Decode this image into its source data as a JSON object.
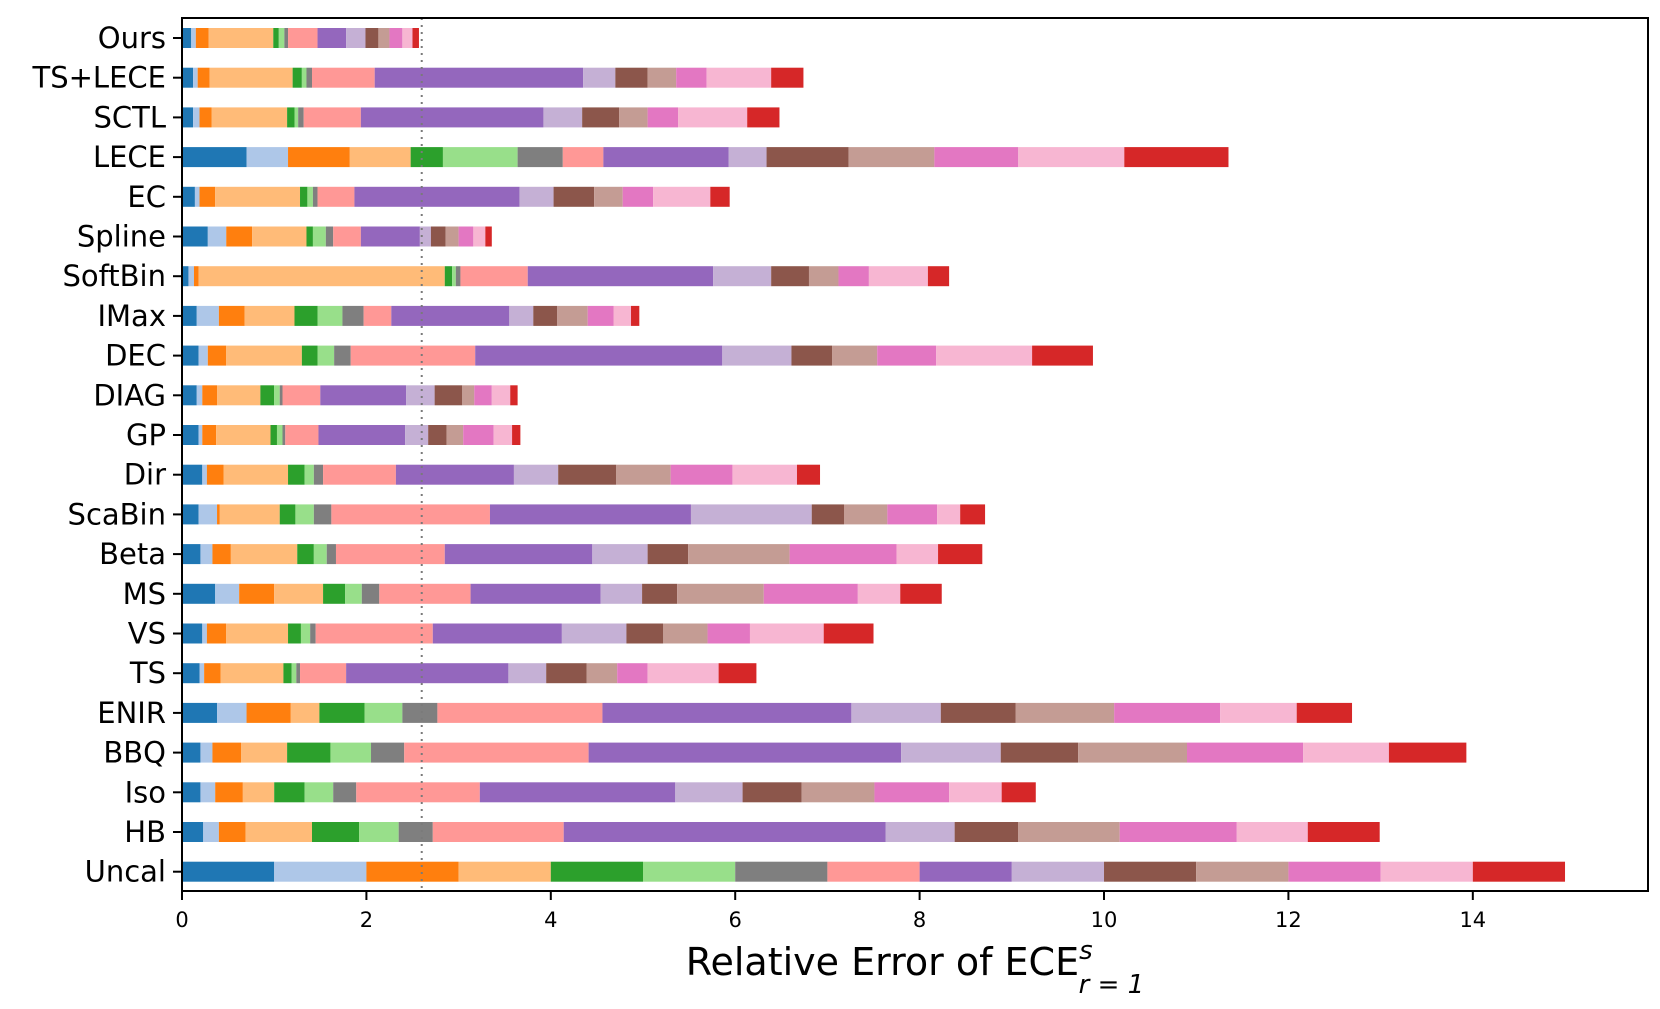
{
  "chart_data": {
    "type": "bar",
    "orientation": "horizontal",
    "stacked": true,
    "title": "",
    "xlabel": "Relative Error of ECE",
    "xlabel_superscript": "s",
    "xlabel_subscript": "r = 1",
    "ylabel": "",
    "xlim": [
      0,
      15.9
    ],
    "xticks": [
      0,
      2,
      4,
      6,
      8,
      10,
      12,
      14
    ],
    "reference_line_x": 2.6,
    "categories": [
      "Ours",
      "TS+LECE",
      "SCTL",
      "LECE",
      "EC",
      "Spline",
      "SoftBin",
      "IMax",
      "DEC",
      "DIAG",
      "GP",
      "Dir",
      "ScaBin",
      "Beta",
      "MS",
      "VS",
      "TS",
      "ENIR",
      "BBQ",
      "Iso",
      "HB",
      "Uncal"
    ],
    "segment_colors": [
      "#1f77b4",
      "#aec7e8",
      "#ff7f0e",
      "#ffbb78",
      "#2ca02c",
      "#98df8a",
      "#7f7f7f",
      "#ff9896",
      "#9467bd",
      "#c5b0d5",
      "#8c564b",
      "#c49c94",
      "#e377c2",
      "#f7b6d2",
      "#d62728"
    ],
    "series_segments": {
      "Ours": [
        0.1,
        0.05,
        0.14,
        0.7,
        0.06,
        0.06,
        0.04,
        0.32,
        0.31,
        0.21,
        0.14,
        0.12,
        0.14,
        0.11,
        0.07
      ],
      "TS+LECE": [
        0.12,
        0.05,
        0.13,
        0.9,
        0.1,
        0.05,
        0.06,
        0.68,
        2.26,
        0.35,
        0.35,
        0.31,
        0.33,
        0.7,
        0.35
      ],
      "SCTL": [
        0.12,
        0.07,
        0.13,
        0.82,
        0.08,
        0.04,
        0.06,
        0.62,
        1.98,
        0.42,
        0.4,
        0.31,
        0.33,
        0.75,
        0.35
      ],
      "LECE": [
        0.7,
        0.45,
        0.67,
        0.66,
        0.35,
        0.81,
        0.49,
        0.44,
        1.36,
        0.41,
        0.89,
        0.93,
        0.91,
        1.15,
        1.13
      ],
      "EC": [
        0.14,
        0.05,
        0.17,
        0.92,
        0.08,
        0.06,
        0.05,
        0.4,
        1.79,
        0.37,
        0.44,
        0.31,
        0.33,
        0.62,
        0.21
      ],
      "Spline": [
        0.28,
        0.2,
        0.28,
        0.59,
        0.07,
        0.14,
        0.08,
        0.3,
        0.64,
        0.12,
        0.16,
        0.14,
        0.16,
        0.13,
        0.07
      ],
      "SoftBin": [
        0.07,
        0.06,
        0.05,
        2.67,
        0.08,
        0.04,
        0.05,
        0.73,
        2.01,
        0.63,
        0.41,
        0.32,
        0.33,
        0.64,
        0.23
      ],
      "IMax": [
        0.16,
        0.24,
        0.28,
        0.54,
        0.25,
        0.27,
        0.23,
        0.3,
        1.28,
        0.26,
        0.26,
        0.33,
        0.28,
        0.19,
        0.09
      ],
      "DEC": [
        0.18,
        0.1,
        0.2,
        0.82,
        0.17,
        0.18,
        0.18,
        1.35,
        2.68,
        0.75,
        0.44,
        0.49,
        0.64,
        1.04,
        0.66
      ],
      "DIAG": [
        0.16,
        0.06,
        0.16,
        0.47,
        0.15,
        0.06,
        0.03,
        0.41,
        0.93,
        0.31,
        0.3,
        0.13,
        0.19,
        0.2,
        0.08
      ],
      "GP": [
        0.18,
        0.04,
        0.15,
        0.59,
        0.07,
        0.06,
        0.03,
        0.36,
        0.94,
        0.25,
        0.2,
        0.18,
        0.33,
        0.2,
        0.09
      ],
      "Dir": [
        0.22,
        0.05,
        0.18,
        0.7,
        0.18,
        0.1,
        0.1,
        0.79,
        1.28,
        0.48,
        0.63,
        0.59,
        0.67,
        0.7,
        0.25
      ],
      "ScaBin": [
        0.18,
        0.2,
        0.03,
        0.65,
        0.17,
        0.2,
        0.19,
        1.72,
        2.18,
        1.31,
        0.35,
        0.47,
        0.54,
        0.25,
        0.27
      ],
      "Beta": [
        0.2,
        0.13,
        0.2,
        0.72,
        0.18,
        0.14,
        0.1,
        1.18,
        1.6,
        0.6,
        0.44,
        1.1,
        1.16,
        0.45,
        0.48
      ],
      "MS": [
        0.36,
        0.26,
        0.38,
        0.53,
        0.24,
        0.18,
        0.19,
        0.99,
        1.41,
        0.45,
        0.38,
        0.94,
        1.02,
        0.46,
        0.45
      ],
      "VS": [
        0.22,
        0.05,
        0.21,
        0.67,
        0.14,
        0.1,
        0.06,
        1.27,
        1.4,
        0.7,
        0.4,
        0.48,
        0.46,
        0.8,
        0.54
      ],
      "TS": [
        0.19,
        0.05,
        0.18,
        0.68,
        0.09,
        0.05,
        0.04,
        0.5,
        1.76,
        0.41,
        0.44,
        0.33,
        0.33,
        0.77,
        0.41
      ],
      "ENIR": [
        0.38,
        0.32,
        0.48,
        0.31,
        0.49,
        0.41,
        0.38,
        1.79,
        2.7,
        0.97,
        0.81,
        1.07,
        1.15,
        0.83,
        0.6
      ],
      "BBQ": [
        0.2,
        0.13,
        0.31,
        0.5,
        0.47,
        0.44,
        0.36,
        2.0,
        3.39,
        1.08,
        0.84,
        1.18,
        1.26,
        0.93,
        0.84
      ],
      "Iso": [
        0.2,
        0.16,
        0.3,
        0.34,
        0.33,
        0.31,
        0.25,
        1.34,
        2.12,
        0.73,
        0.64,
        0.79,
        0.81,
        0.57,
        0.37
      ],
      "HB": [
        0.23,
        0.17,
        0.29,
        0.72,
        0.51,
        0.43,
        0.37,
        1.42,
        3.49,
        0.75,
        0.69,
        1.1,
        1.27,
        0.77,
        0.78
      ],
      "Uncal": [
        1.0,
        1.0,
        1.0,
        1.0,
        1.0,
        1.0,
        1.0,
        1.0,
        1.0,
        1.0,
        1.0,
        1.0,
        1.0,
        1.0,
        1.0
      ]
    }
  }
}
